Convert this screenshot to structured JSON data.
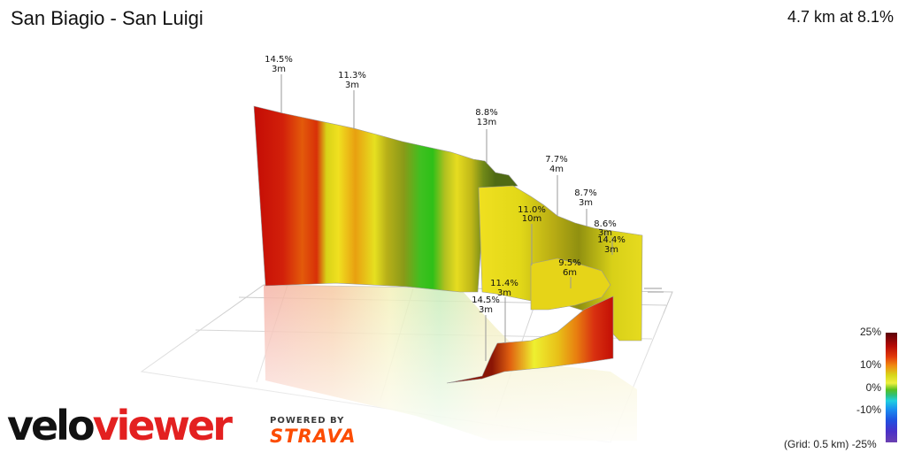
{
  "header": {
    "title": "San Biagio - San Luigi",
    "summary": "4.7 km at 8.1%"
  },
  "chart_data": {
    "type": "area",
    "view": "3d-route-profile",
    "annotations": [
      {
        "gradient": "14.5%",
        "length": "3m"
      },
      {
        "gradient": "11.3%",
        "length": "3m"
      },
      {
        "gradient": "8.8%",
        "length": "13m"
      },
      {
        "gradient": "7.7%",
        "length": "4m"
      },
      {
        "gradient": "8.7%",
        "length": "3m"
      },
      {
        "gradient": "11.0%",
        "length": "10m"
      },
      {
        "gradient": "8.6%",
        "length": "3m"
      },
      {
        "gradient": "14.4%",
        "length": "3m"
      },
      {
        "gradient": "9.5%",
        "length": "6m"
      },
      {
        "gradient": "11.4%",
        "length": "3m"
      },
      {
        "gradient": "14.5%",
        "length": "3m"
      }
    ],
    "legend": {
      "title": "gradient color scale",
      "ticks": [
        "25%",
        "10%",
        "0%",
        "-10%",
        "-25%"
      ],
      "grid_note": "(Grid: 0.5 km)"
    },
    "colors": {
      "steep": "#c40c05",
      "hard": "#e8600a",
      "moderate": "#e8d018",
      "easy": "#8a9a18",
      "flat": "#2ec018",
      "grid": "#c8c8c8"
    },
    "grid": true
  },
  "branding": {
    "logo_prefix": "velo",
    "logo_suffix": "viewer",
    "powered_by": "POWERED BY",
    "partner": "STRAVA"
  }
}
